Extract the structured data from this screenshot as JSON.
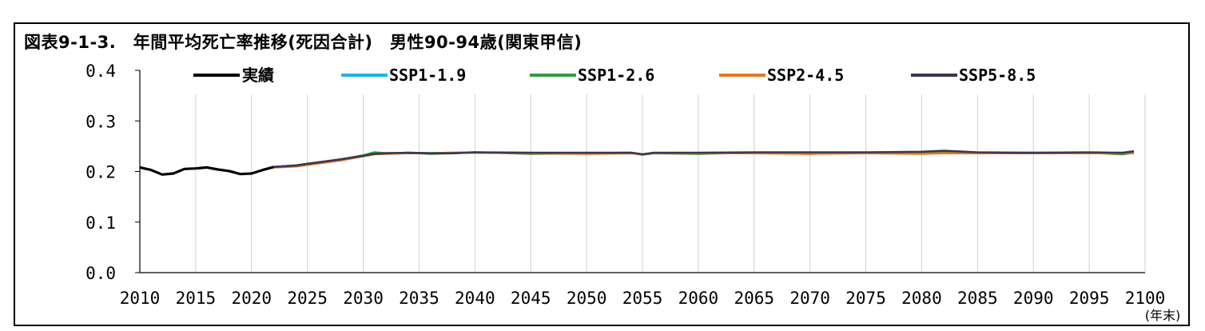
{
  "chart_data": {
    "type": "line",
    "title": "図表9-1-3.　年間平均死亡率推移(死因合計)　男性90-94歳(関東甲信)",
    "xlabel": "(年末)",
    "ylabel": "",
    "xlim": [
      2010,
      2100
    ],
    "ylim": [
      0.0,
      0.4
    ],
    "x_ticks": [
      "2010",
      "2015",
      "2020",
      "2025",
      "2030",
      "2035",
      "2040",
      "2045",
      "2050",
      "2055",
      "2060",
      "2065",
      "2070",
      "2075",
      "2080",
      "2085",
      "2090",
      "2095",
      "2100"
    ],
    "y_ticks": [
      "0.0",
      "0.1",
      "0.2",
      "0.3",
      "0.4"
    ],
    "grid": "vertical",
    "legend_position": "top",
    "series": [
      {
        "name": "実績",
        "color": "#000000",
        "x": [
          2010,
          2011,
          2012,
          2013,
          2014,
          2015,
          2016,
          2017,
          2018,
          2019,
          2020,
          2021,
          2022
        ],
        "y": [
          0.208,
          0.203,
          0.194,
          0.196,
          0.205,
          0.206,
          0.208,
          0.204,
          0.201,
          0.195,
          0.196,
          0.203,
          0.209
        ]
      },
      {
        "name": "SSP1-1.9",
        "color": "#1eb4e6",
        "x": [
          2022,
          2024,
          2026,
          2028,
          2030,
          2031,
          2032,
          2034,
          2036,
          2038,
          2040,
          2045,
          2050,
          2054,
          2055,
          2056,
          2060,
          2065,
          2070,
          2075,
          2080,
          2082,
          2085,
          2090,
          2095,
          2098,
          2099
        ],
        "y": [
          0.209,
          0.212,
          0.218,
          0.223,
          0.23,
          0.235,
          0.236,
          0.237,
          0.236,
          0.237,
          0.238,
          0.236,
          0.236,
          0.237,
          0.233,
          0.236,
          0.236,
          0.237,
          0.236,
          0.237,
          0.237,
          0.239,
          0.237,
          0.237,
          0.237,
          0.236,
          0.238
        ]
      },
      {
        "name": "SSP1-2.6",
        "color": "#2e9a3e",
        "x": [
          2022,
          2024,
          2026,
          2028,
          2030,
          2031,
          2032,
          2034,
          2036,
          2038,
          2040,
          2045,
          2050,
          2054,
          2055,
          2056,
          2060,
          2065,
          2070,
          2075,
          2080,
          2082,
          2085,
          2090,
          2095,
          2098,
          2099
        ],
        "y": [
          0.209,
          0.212,
          0.218,
          0.224,
          0.232,
          0.238,
          0.236,
          0.237,
          0.235,
          0.236,
          0.238,
          0.235,
          0.236,
          0.237,
          0.234,
          0.236,
          0.235,
          0.237,
          0.235,
          0.237,
          0.236,
          0.237,
          0.236,
          0.236,
          0.237,
          0.234,
          0.237
        ]
      },
      {
        "name": "SSP2-4.5",
        "color": "#e6781e",
        "x": [
          2022,
          2024,
          2026,
          2028,
          2030,
          2031,
          2032,
          2034,
          2036,
          2038,
          2040,
          2045,
          2050,
          2054,
          2055,
          2056,
          2060,
          2065,
          2070,
          2075,
          2080,
          2082,
          2085,
          2090,
          2095,
          2098,
          2099
        ],
        "y": [
          0.208,
          0.21,
          0.216,
          0.222,
          0.23,
          0.234,
          0.235,
          0.236,
          0.236,
          0.237,
          0.237,
          0.236,
          0.235,
          0.236,
          0.234,
          0.236,
          0.236,
          0.236,
          0.235,
          0.236,
          0.235,
          0.236,
          0.236,
          0.236,
          0.236,
          0.236,
          0.236
        ]
      },
      {
        "name": "SSP5-8.5",
        "color": "#3c3650",
        "x": [
          2022,
          2024,
          2026,
          2028,
          2030,
          2031,
          2032,
          2034,
          2036,
          2038,
          2040,
          2045,
          2050,
          2054,
          2055,
          2056,
          2060,
          2065,
          2070,
          2075,
          2080,
          2082,
          2085,
          2090,
          2095,
          2098,
          2099
        ],
        "y": [
          0.209,
          0.212,
          0.218,
          0.224,
          0.231,
          0.235,
          0.236,
          0.237,
          0.236,
          0.236,
          0.238,
          0.237,
          0.237,
          0.237,
          0.234,
          0.237,
          0.237,
          0.238,
          0.238,
          0.238,
          0.239,
          0.241,
          0.238,
          0.237,
          0.238,
          0.237,
          0.24
        ]
      }
    ]
  }
}
